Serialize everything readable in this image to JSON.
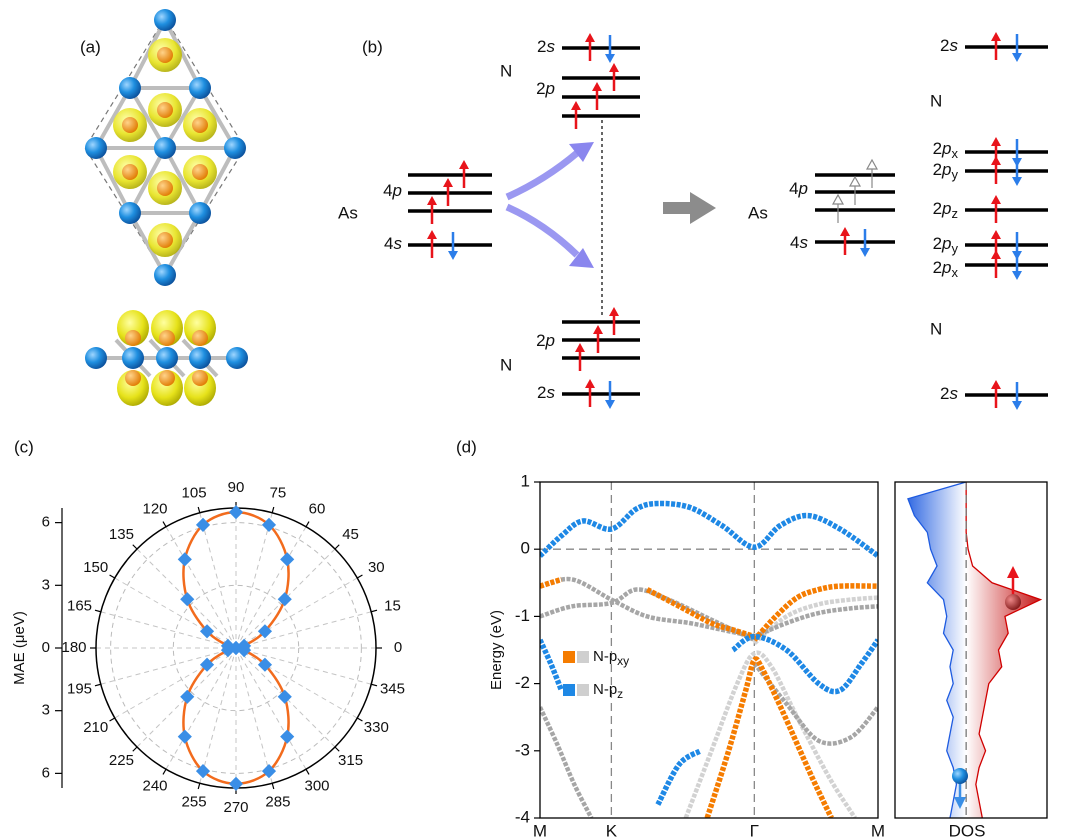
{
  "panels": [
    "(a)",
    "(b)",
    "(c)",
    "(d)"
  ],
  "diagram": {
    "n_top": {
      "element": "N",
      "orbitals": [
        {
          "n": "2",
          "l": "s"
        },
        {
          "n": "2",
          "l": "p"
        }
      ]
    },
    "n_bottom": {
      "element": "N",
      "orbitals": [
        {
          "n": "2",
          "l": "p"
        },
        {
          "n": "2",
          "l": "s"
        }
      ]
    },
    "as_left": {
      "element": "As",
      "orbitals": [
        {
          "n": "4",
          "l": "p"
        },
        {
          "n": "4",
          "l": "s"
        }
      ]
    },
    "as_right": {
      "element": "As",
      "orbitals": [
        {
          "n": "4",
          "l": "p"
        },
        {
          "n": "4",
          "l": "s"
        }
      ]
    },
    "n_right": {
      "element_top": "N",
      "element_bottom": "N",
      "orbitals": [
        {
          "n": "2",
          "l": "s"
        },
        {
          "n": "2",
          "l": "p",
          "sub": "x"
        },
        {
          "n": "2",
          "l": "p",
          "sub": "y"
        },
        {
          "n": "2",
          "l": "p",
          "sub": "z"
        },
        {
          "n": "2",
          "l": "p",
          "sub": "y"
        },
        {
          "n": "2",
          "l": "p",
          "sub": "x"
        },
        {
          "n": "2",
          "l": "s"
        }
      ]
    }
  },
  "chart_data": [
    {
      "type": "polar",
      "ylabel": "MAE (μeV)",
      "line_color": "#f26b1d",
      "marker_color": "#3a8ee6",
      "theta": [
        0,
        15,
        30,
        45,
        60,
        75,
        90,
        105,
        120,
        135,
        150,
        165,
        180,
        195,
        210,
        225,
        240,
        255,
        270,
        285,
        300,
        315,
        330,
        345
      ],
      "values": [
        0,
        0.4,
        1.6,
        3.3,
        4.9,
        6.1,
        6.5,
        6.1,
        4.9,
        3.3,
        1.6,
        0.4,
        0,
        0.4,
        1.6,
        3.3,
        4.9,
        6.1,
        6.5,
        6.1,
        4.9,
        3.3,
        1.6,
        0.4
      ],
      "thetaticks": [
        0,
        15,
        30,
        45,
        60,
        75,
        90,
        105,
        120,
        135,
        150,
        165,
        180,
        195,
        210,
        225,
        240,
        255,
        270,
        285,
        300,
        315,
        330,
        345
      ],
      "rlim": [
        0,
        6.7
      ],
      "rticks": [
        6,
        3,
        0,
        {
          "value": -3,
          "label": "3"
        },
        {
          "value": -6,
          "label": "6"
        }
      ],
      "grid": true
    },
    {
      "type": "band",
      "ylabel": "Energy (eV)",
      "xlim": [
        0,
        1.577
      ],
      "ylim": [
        -4,
        1
      ],
      "yticks": [
        -4,
        -3,
        -2,
        -1,
        0,
        1
      ],
      "xticks": [
        {
          "value": 0,
          "label": "M"
        },
        {
          "value": 0.333,
          "label": "K"
        },
        {
          "value": 1.0,
          "label": "Γ"
        },
        {
          "value": 1.577,
          "label": "M"
        }
      ],
      "series": [
        {
          "color": "#d2d2d2",
          "x": [
            0.68,
            0.8,
            0.92,
            1.0,
            1.08,
            1.2,
            1.35,
            1.47
          ],
          "values": [
            -4,
            -3.0,
            -2.0,
            -1.55,
            -1.75,
            -2.5,
            -3.4,
            -4
          ]
        },
        {
          "color": "#d2d2d2",
          "x": [
            1.0,
            1.15,
            1.3,
            1.45,
            1.577
          ],
          "values": [
            -1.4,
            -1.0,
            -0.82,
            -0.75,
            -0.72
          ]
        },
        {
          "color": "#a6a6a6",
          "x": [
            1.0,
            1.15,
            1.3,
            1.45,
            1.577
          ],
          "values": [
            -1.3,
            -1.1,
            -0.95,
            -0.88,
            -0.85
          ]
        },
        {
          "color": "#a6a6a6",
          "x": [
            0,
            0.15,
            0.333,
            0.5,
            0.7,
            0.85,
            1.0
          ],
          "values": [
            -0.55,
            -0.45,
            -0.75,
            -1.0,
            -1.1,
            -1.2,
            -1.3
          ]
        },
        {
          "color": "#a6a6a6",
          "x": [
            0,
            0.15,
            0.333,
            0.45,
            0.6,
            0.8,
            1.0
          ],
          "values": [
            -1.0,
            -0.85,
            -0.8,
            -0.6,
            -0.75,
            -1.05,
            -1.35
          ]
        },
        {
          "color": "#a6a6a6",
          "x": [
            1.0,
            1.15,
            1.3,
            1.45,
            1.577
          ],
          "values": [
            -1.7,
            -2.3,
            -2.85,
            -2.8,
            -2.35
          ]
        },
        {
          "color": "#a6a6a6",
          "x": [
            0,
            0.08,
            0.16,
            0.24
          ],
          "values": [
            -2.35,
            -2.9,
            -3.5,
            -4
          ]
        },
        {
          "name": "N-p",
          "sub": "xy",
          "color": "#f57c00",
          "x": [
            1.0,
            1.1,
            1.2,
            1.3,
            1.4,
            1.577
          ],
          "values": [
            -1.35,
            -1.0,
            -0.72,
            -0.6,
            -0.55,
            -0.55
          ]
        },
        {
          "color": "#f57c00",
          "x": [
            0.5,
            0.65,
            0.8,
            0.9,
            1.0
          ],
          "values": [
            -0.6,
            -0.85,
            -1.1,
            -1.2,
            -1.3
          ]
        },
        {
          "color": "#f57c00",
          "x": [
            0.78,
            0.88,
            0.96,
            1.0,
            1.04,
            1.13,
            1.27,
            1.36
          ],
          "values": [
            -4,
            -3.0,
            -2.1,
            -1.65,
            -1.8,
            -2.4,
            -3.4,
            -4
          ]
        },
        {
          "color": "#f57c00",
          "x": [
            0,
            0.05,
            0.1
          ],
          "values": [
            -0.55,
            -0.5,
            -0.45
          ]
        },
        {
          "name": "N-p",
          "sub": "z",
          "color": "#1e88e5",
          "x": [
            0,
            0.1,
            0.2,
            0.333,
            0.45,
            0.55,
            0.7,
            0.85,
            1.0,
            1.12,
            1.25,
            1.4,
            1.577
          ],
          "values": [
            -0.1,
            0.2,
            0.42,
            0.3,
            0.6,
            0.68,
            0.62,
            0.35,
            0.03,
            0.35,
            0.5,
            0.3,
            -0.1
          ]
        },
        {
          "color": "#1e88e5",
          "x": [
            0.9,
            1.0,
            1.15,
            1.3,
            1.4,
            1.5,
            1.577
          ],
          "values": [
            -1.5,
            -1.3,
            -1.5,
            -2.0,
            -2.1,
            -1.7,
            -1.35
          ]
        },
        {
          "color": "#1e88e5",
          "x": [
            0,
            0.05,
            0.1
          ],
          "values": [
            -1.35,
            -1.7,
            -2.1
          ]
        },
        {
          "color": "#1e88e5",
          "x": [
            0.55,
            0.65,
            0.75
          ],
          "values": [
            -3.8,
            -3.2,
            -3.0
          ]
        }
      ]
    },
    {
      "type": "dos",
      "xlabel": "DOS",
      "xlim": [
        -1.1,
        1.25
      ],
      "ylim": [
        -4,
        1
      ],
      "y": [
        1,
        0.75,
        0.5,
        0.25,
        0,
        -0.25,
        -0.5,
        -0.75,
        -1,
        -1.25,
        -1.5,
        -1.75,
        -2,
        -2.25,
        -2.5,
        -2.75,
        -3,
        -3.25,
        -3.5,
        -3.75,
        -4
      ],
      "series": [
        {
          "color": "#1e5be0",
          "values": [
            0,
            -0.9,
            -0.8,
            -0.6,
            -0.55,
            -0.45,
            -0.6,
            -0.35,
            -0.3,
            -0.35,
            -0.2,
            -0.25,
            -0.2,
            -0.3,
            -0.2,
            -0.25,
            -0.3,
            -0.2,
            -0.15,
            -0.2,
            -0.25
          ]
        },
        {
          "color": "#d00000",
          "values": [
            0,
            0,
            0,
            0,
            0.03,
            0.1,
            0.4,
            1.15,
            0.6,
            0.65,
            0.5,
            0.55,
            0.35,
            0.3,
            0.25,
            0.2,
            0.3,
            0.2,
            0.15,
            0.2,
            0.25
          ]
        }
      ]
    }
  ]
}
